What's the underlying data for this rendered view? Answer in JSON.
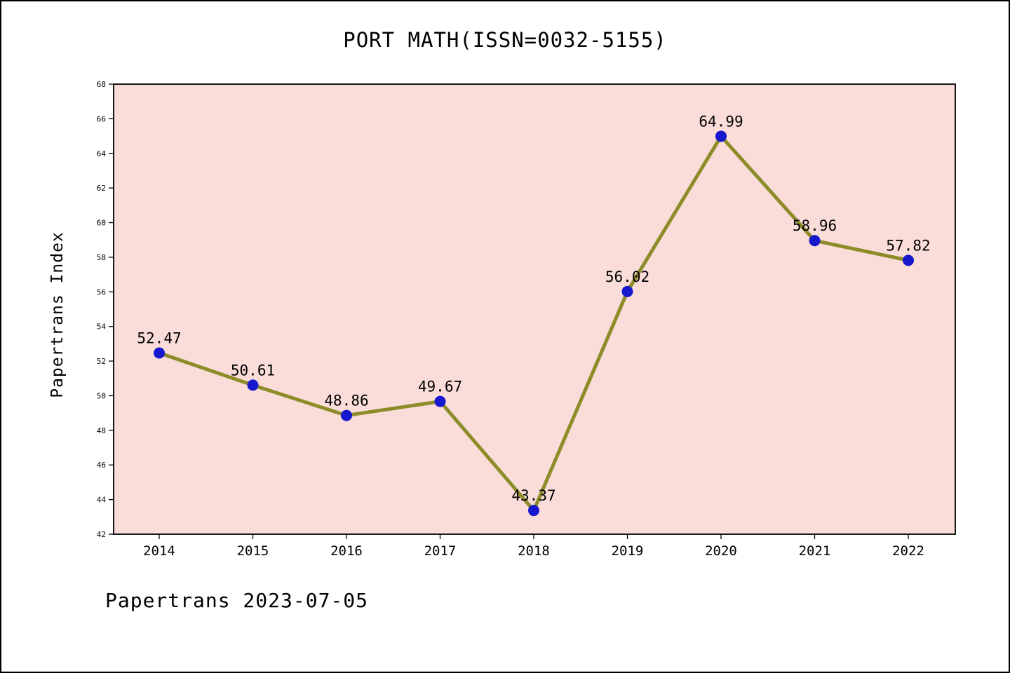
{
  "footer": "Papertrans 2023-07-05",
  "chart_data": {
    "type": "line",
    "title": "PORT MATH(ISSN=0032-5155)",
    "ylabel": "Papertrans Index",
    "xlabel": "",
    "categories": [
      "2014",
      "2015",
      "2016",
      "2017",
      "2018",
      "2019",
      "2020",
      "2021",
      "2022"
    ],
    "values": [
      52.47,
      50.61,
      48.86,
      49.67,
      43.37,
      56.02,
      64.99,
      58.96,
      57.82
    ],
    "point_labels": [
      "52.47",
      "50.61",
      "48.86",
      "49.67",
      "43.37",
      "56.02",
      "64.99",
      "58.96",
      "57.82"
    ],
    "ylim": [
      42,
      68
    ],
    "yticks": [
      42,
      44,
      46,
      48,
      50,
      52,
      54,
      56,
      58,
      60,
      62,
      64,
      66,
      68
    ],
    "grid": false,
    "legend_position": "none",
    "colors": {
      "plot_background": "#fadcd9",
      "page_background": "#ffffff",
      "line": "#8c8c28",
      "marker": "#1717ce",
      "axis": "#000000",
      "text": "#000000"
    }
  }
}
